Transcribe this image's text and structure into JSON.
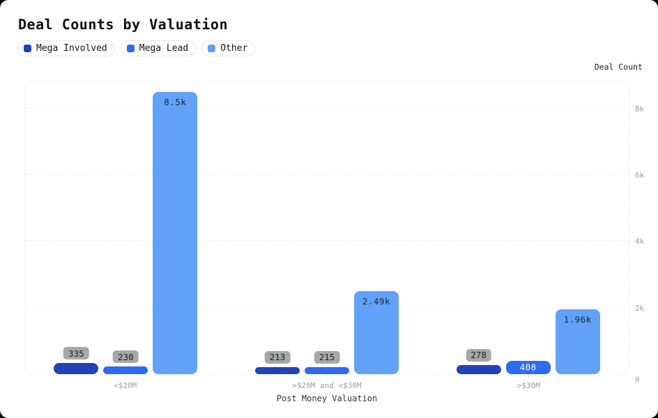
{
  "title": "Deal Counts by Valuation",
  "legend": {
    "items": [
      {
        "label": "Mega Involved",
        "color": "#2342b5"
      },
      {
        "label": "Mega Lead",
        "color": "#2f6bf2"
      },
      {
        "label": "Other",
        "color": "#61a2f8"
      }
    ]
  },
  "y_axis": {
    "title": "Deal Count",
    "ticks": [
      {
        "label": "0",
        "value": 0
      },
      {
        "label": "2k",
        "value": 2000
      },
      {
        "label": "4k",
        "value": 4000
      },
      {
        "label": "6k",
        "value": 6000
      },
      {
        "label": "8k",
        "value": 8000
      }
    ]
  },
  "x_axis": {
    "title": "Post Money Valuation",
    "categories": [
      "<$20M",
      ">$20M and <$30M",
      ">$30M"
    ]
  },
  "chart_data": {
    "type": "bar",
    "title": "Deal Counts by Valuation",
    "xlabel": "Post Money Valuation",
    "ylabel": "Deal Count",
    "categories": [
      "<$20M",
      ">$20M and <$30M",
      ">$30M"
    ],
    "series": [
      {
        "name": "Mega Involved",
        "color": "#2342b5",
        "values": [
          335,
          213,
          278
        ],
        "labels": [
          "335",
          "213",
          "278"
        ]
      },
      {
        "name": "Mega Lead",
        "color": "#2f6bf2",
        "values": [
          230,
          215,
          408
        ],
        "labels": [
          "230",
          "215",
          "408"
        ]
      },
      {
        "name": "Other",
        "color": "#61a2f8",
        "values": [
          8500,
          2490,
          1960
        ],
        "labels": [
          "8.5k",
          "2.49k",
          "1.96k"
        ]
      }
    ],
    "ylim": [
      0,
      8840
    ],
    "grid": "horizontal-dashed",
    "legend_position": "top-left"
  },
  "colors": {
    "background": "#0a0a0a",
    "card": "#ffffff",
    "grid": "#ececef",
    "tick_text": "#9ba0a6",
    "category_text": "#9aa0a8",
    "x_title_text": "#33363b",
    "badge_bg": "#a7a8aa",
    "badge_text": "#1d1e20",
    "inbar_dark_text": "#172544",
    "inbar_light_text": "#ffffff"
  }
}
